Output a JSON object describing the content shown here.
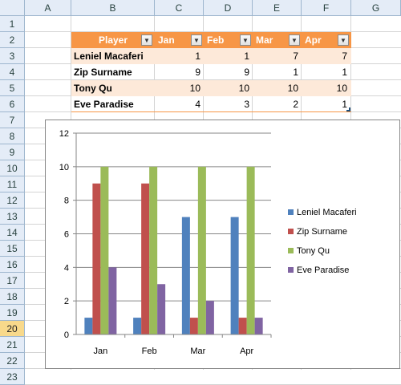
{
  "columns": [
    "A",
    "B",
    "C",
    "D",
    "E",
    "F",
    "G"
  ],
  "rows": [
    "1",
    "2",
    "3",
    "4",
    "5",
    "6",
    "7",
    "8",
    "9",
    "10",
    "11",
    "12",
    "13",
    "14",
    "15",
    "16",
    "17",
    "18",
    "19",
    "20",
    "21",
    "22",
    "23"
  ],
  "selected_row": "20",
  "table": {
    "headers": [
      "Player",
      "Jan",
      "Feb",
      "Mar",
      "Apr"
    ],
    "data": [
      {
        "name": "Leniel Macaferi",
        "values": [
          "1",
          "1",
          "7",
          "7"
        ]
      },
      {
        "name": "Zip Surname",
        "values": [
          "9",
          "9",
          "1",
          "1"
        ]
      },
      {
        "name": "Tony Qu",
        "values": [
          "10",
          "10",
          "10",
          "10"
        ]
      },
      {
        "name": "Eve Paradise",
        "values": [
          "4",
          "3",
          "2",
          "1"
        ]
      }
    ]
  },
  "chart_data": {
    "type": "bar",
    "categories": [
      "Jan",
      "Feb",
      "Mar",
      "Apr"
    ],
    "series": [
      {
        "name": "Leniel Macaferi",
        "values": [
          1,
          1,
          7,
          7
        ],
        "color": "#4f81bd"
      },
      {
        "name": "Zip Surname",
        "values": [
          9,
          9,
          1,
          1
        ],
        "color": "#c0504d"
      },
      {
        "name": "Tony Qu",
        "values": [
          10,
          10,
          10,
          10
        ],
        "color": "#9bbb59"
      },
      {
        "name": "Eve Paradise",
        "values": [
          4,
          3,
          2,
          1
        ],
        "color": "#8064a2"
      }
    ],
    "ylim": [
      0,
      12
    ],
    "yticks": [
      "0",
      "2",
      "4",
      "6",
      "8",
      "10",
      "12"
    ],
    "grid": true,
    "legend": "right"
  }
}
